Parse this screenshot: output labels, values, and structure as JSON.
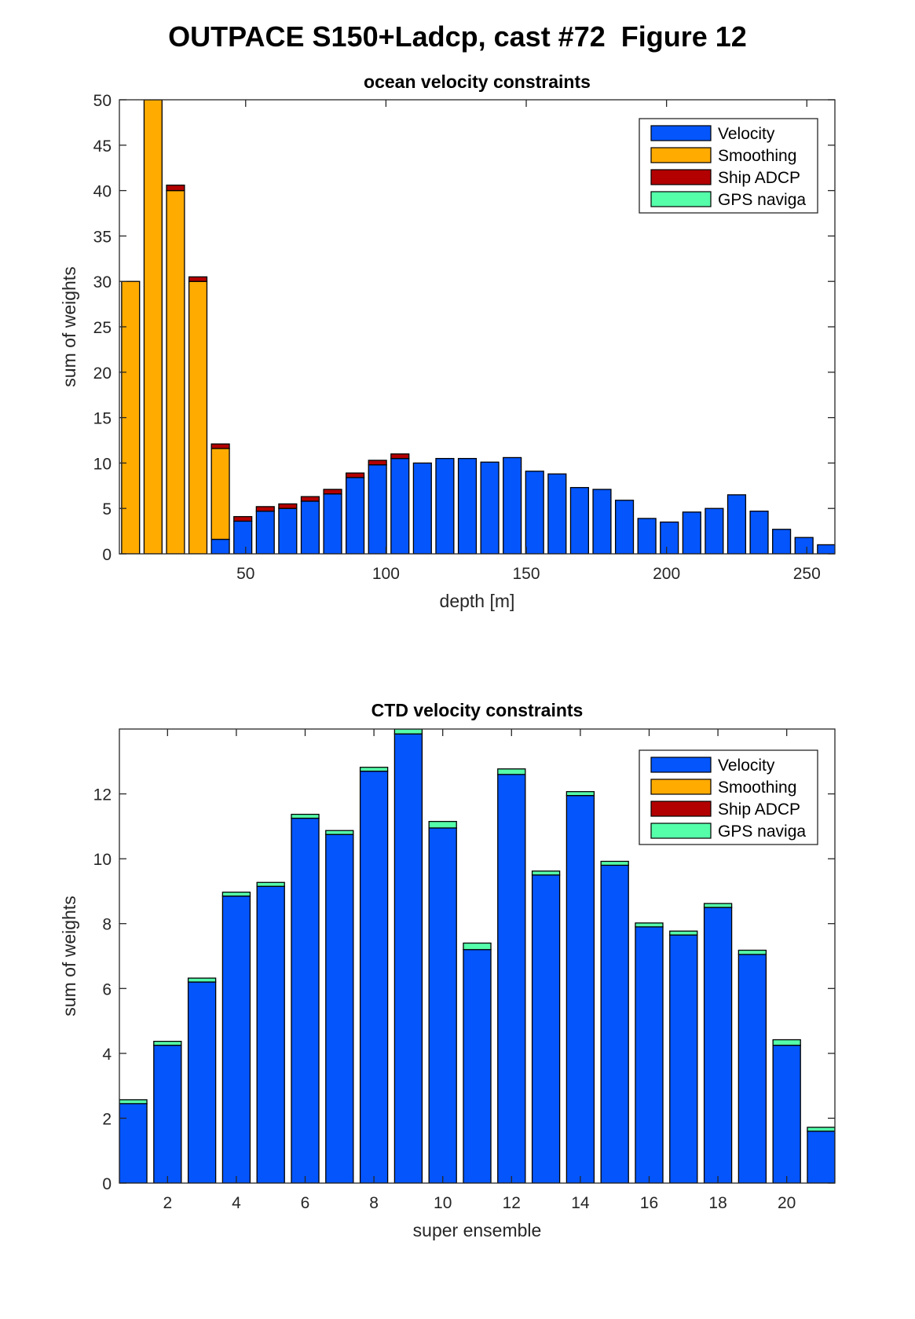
{
  "figure_title": "OUTPACE S150+Ladcp, cast #72  Figure 12",
  "colors": {
    "velocity": "#0455fb",
    "smoothing": "#ffab00",
    "ship_adcp": "#b30000",
    "gps_navigation": "#55ffaa"
  },
  "chart_data": [
    {
      "type": "bar",
      "stacked": true,
      "title": "ocean velocity constraints",
      "xlabel": "depth [m]",
      "ylabel": "sum of weights",
      "xlim": [
        5,
        260
      ],
      "ylim": [
        0,
        50
      ],
      "x_ticks": [
        50,
        100,
        150,
        200,
        250
      ],
      "y_ticks": [
        0,
        5,
        10,
        15,
        20,
        25,
        30,
        35,
        40,
        45,
        50
      ],
      "grid": false,
      "legend_position": "top-right",
      "legend": [
        "Velocity",
        "Smoothing",
        "Ship ADCP",
        "GPS naviga"
      ],
      "x": [
        9,
        17,
        25,
        33,
        41,
        49,
        57,
        65,
        73,
        81,
        89,
        97,
        105,
        113,
        121,
        129,
        137,
        145,
        153,
        161,
        169,
        177,
        185,
        193,
        201,
        209,
        217,
        225,
        233,
        241,
        249,
        257
      ],
      "series": [
        {
          "name": "Velocity",
          "values": [
            0,
            0,
            0,
            0,
            1.6,
            3.6,
            4.7,
            5.0,
            5.8,
            6.6,
            8.4,
            9.8,
            10.5,
            10.0,
            10.5,
            10.5,
            10.1,
            10.6,
            9.1,
            8.8,
            7.3,
            7.1,
            5.9,
            3.9,
            3.5,
            4.6,
            5.0,
            6.5,
            4.7,
            2.7,
            1.8,
            1.0
          ]
        },
        {
          "name": "Smoothing",
          "values": [
            30,
            50,
            40,
            30,
            10.0,
            0,
            0,
            0,
            0,
            0,
            0,
            0,
            0,
            0,
            0,
            0,
            0,
            0,
            0,
            0,
            0,
            0,
            0,
            0,
            0,
            0,
            0,
            0,
            0,
            0,
            0,
            0
          ]
        },
        {
          "name": "Ship ADCP",
          "values": [
            0,
            0,
            0.6,
            0.5,
            0.5,
            0.5,
            0.5,
            0.5,
            0.5,
            0.5,
            0.5,
            0.5,
            0.5,
            0,
            0,
            0,
            0,
            0,
            0,
            0,
            0,
            0,
            0,
            0,
            0,
            0,
            0,
            0,
            0,
            0,
            0,
            0
          ]
        },
        {
          "name": "GPS naviga",
          "values": [
            0,
            0,
            0,
            0,
            0,
            0,
            0,
            0,
            0,
            0,
            0,
            0,
            0,
            0,
            0,
            0,
            0,
            0,
            0,
            0,
            0,
            0,
            0,
            0,
            0,
            0,
            0,
            0,
            0,
            0,
            0,
            0
          ]
        }
      ]
    },
    {
      "type": "bar",
      "stacked": true,
      "title": "CTD velocity constraints",
      "xlabel": "super ensemble",
      "ylabel": "sum of weights",
      "xlim": [
        0.6,
        21.4
      ],
      "ylim": [
        0,
        14
      ],
      "x_ticks": [
        2,
        4,
        6,
        8,
        10,
        12,
        14,
        16,
        18,
        20
      ],
      "y_ticks": [
        0,
        2,
        4,
        6,
        8,
        10,
        12
      ],
      "grid": false,
      "legend_position": "top-right",
      "legend": [
        "Velocity",
        "Smoothing",
        "Ship ADCP",
        "GPS naviga"
      ],
      "x": [
        1,
        2,
        3,
        4,
        5,
        6,
        7,
        8,
        9,
        10,
        11,
        12,
        13,
        14,
        15,
        16,
        17,
        18,
        19,
        20,
        21
      ],
      "series": [
        {
          "name": "Velocity",
          "values": [
            2.45,
            4.25,
            6.2,
            8.85,
            9.15,
            11.25,
            10.75,
            12.7,
            13.85,
            10.95,
            7.2,
            12.6,
            9.5,
            11.95,
            9.8,
            7.9,
            7.65,
            8.5,
            7.05,
            4.25,
            1.6
          ]
        },
        {
          "name": "Smoothing",
          "values": [
            0,
            0,
            0,
            0,
            0,
            0,
            0,
            0,
            0,
            0,
            0,
            0,
            0,
            0,
            0,
            0,
            0,
            0,
            0,
            0,
            0
          ]
        },
        {
          "name": "Ship ADCP",
          "values": [
            0,
            0,
            0,
            0,
            0,
            0,
            0,
            0,
            0,
            0,
            0,
            0,
            0,
            0,
            0,
            0,
            0,
            0,
            0,
            0,
            0
          ]
        },
        {
          "name": "GPS naviga",
          "values": [
            0.12,
            0.12,
            0.12,
            0.12,
            0.12,
            0.12,
            0.12,
            0.12,
            0.15,
            0.2,
            0.2,
            0.17,
            0.12,
            0.12,
            0.12,
            0.12,
            0.12,
            0.12,
            0.13,
            0.17,
            0.12
          ]
        }
      ]
    }
  ]
}
